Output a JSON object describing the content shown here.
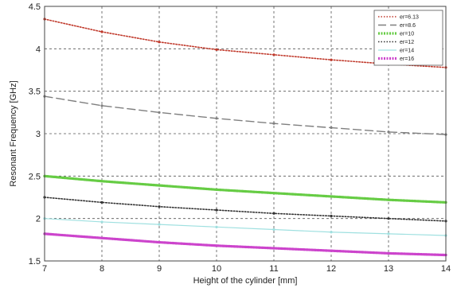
{
  "chart_data": {
    "type": "line",
    "xlabel": "Height of the cylinder [mm]",
    "ylabel": "Resonant Frequency [GHz]",
    "xlim": [
      7,
      14
    ],
    "ylim": [
      1.5,
      4.5
    ],
    "xticks": [
      "7",
      "8",
      "9",
      "10",
      "11",
      "12",
      "13",
      "14"
    ],
    "yticks": [
      "1.5",
      "2",
      "2.5",
      "3",
      "3.5",
      "4",
      "4.5"
    ],
    "grid": true,
    "legend_position": "top-right",
    "series": [
      {
        "name": "er=6.13",
        "color": "#c0392b",
        "style": "dotted",
        "x": [
          7,
          8,
          9,
          10,
          11,
          12,
          13,
          14
        ],
        "y": [
          4.35,
          4.2,
          4.08,
          3.99,
          3.93,
          3.87,
          3.82,
          3.78
        ]
      },
      {
        "name": "er=8.6",
        "color": "#7f7f7f",
        "style": "dashed",
        "x": [
          7,
          8,
          9,
          10,
          11,
          12,
          13,
          14
        ],
        "y": [
          3.44,
          3.33,
          3.25,
          3.18,
          3.12,
          3.07,
          3.02,
          2.99
        ]
      },
      {
        "name": "er=10",
        "color": "#66cc44",
        "style": "thick",
        "x": [
          7,
          8,
          9,
          10,
          11,
          12,
          13,
          14
        ],
        "y": [
          2.5,
          2.44,
          2.39,
          2.34,
          2.3,
          2.26,
          2.22,
          2.19
        ]
      },
      {
        "name": "er=12",
        "color": "#333333",
        "style": "dotted",
        "x": [
          7,
          8,
          9,
          10,
          11,
          12,
          13,
          14
        ],
        "y": [
          2.25,
          2.19,
          2.14,
          2.1,
          2.06,
          2.03,
          2.0,
          1.97
        ]
      },
      {
        "name": "er=14",
        "color": "#9fe0e0",
        "style": "solid",
        "x": [
          7,
          8,
          9,
          10,
          11,
          12,
          13,
          14
        ],
        "y": [
          2.0,
          1.96,
          1.93,
          1.9,
          1.87,
          1.84,
          1.82,
          1.8
        ]
      },
      {
        "name": "er=16",
        "color": "#cc44cc",
        "style": "thick",
        "x": [
          7,
          8,
          9,
          10,
          11,
          12,
          13,
          14
        ],
        "y": [
          1.82,
          1.77,
          1.72,
          1.68,
          1.65,
          1.62,
          1.59,
          1.57
        ]
      }
    ]
  }
}
